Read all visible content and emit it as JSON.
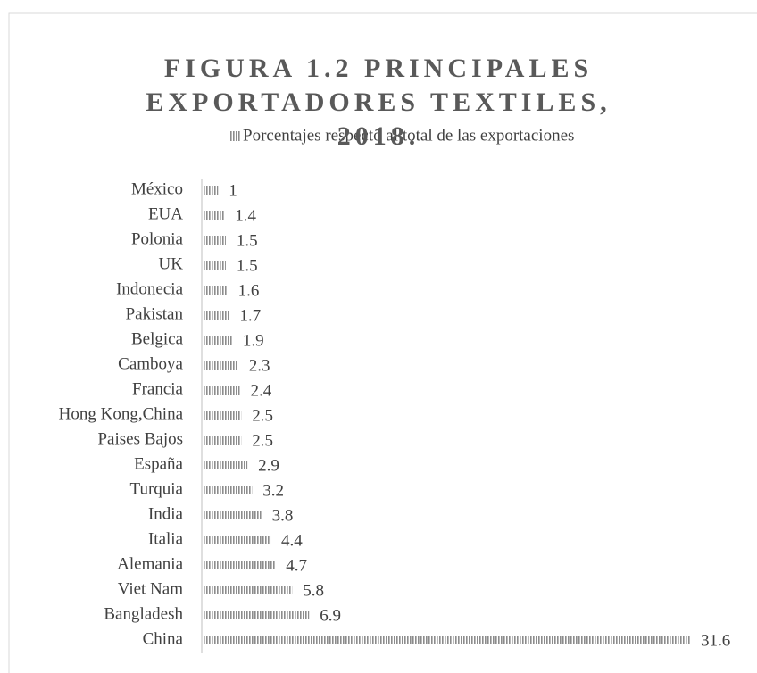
{
  "chart_data": {
    "type": "bar",
    "orientation": "horizontal",
    "title": "FIGURA 1.2 PRINCIPALES EXPORTADORES TEXTILES, 2018.",
    "categories": [
      "México",
      "EUA",
      "Polonia",
      "UK",
      "Indonecia",
      "Pakistan",
      "Belgica",
      "Camboya",
      "Francia",
      "Hong Kong,China",
      "Paises Bajos",
      "España",
      "Turquia",
      "India",
      "Italia",
      "Alemania",
      "Viet Nam",
      "Bangladesh",
      "China"
    ],
    "series": [
      {
        "name": "Porcentajes respecto al total de las exportaciones",
        "color": "#8c8c8c",
        "values": [
          1,
          1.4,
          1.5,
          1.5,
          1.6,
          1.7,
          1.9,
          2.3,
          2.4,
          2.5,
          2.5,
          2.9,
          3.2,
          3.8,
          4.4,
          4.7,
          5.8,
          6.9,
          31.6
        ]
      }
    ],
    "legend": "top"
  }
}
